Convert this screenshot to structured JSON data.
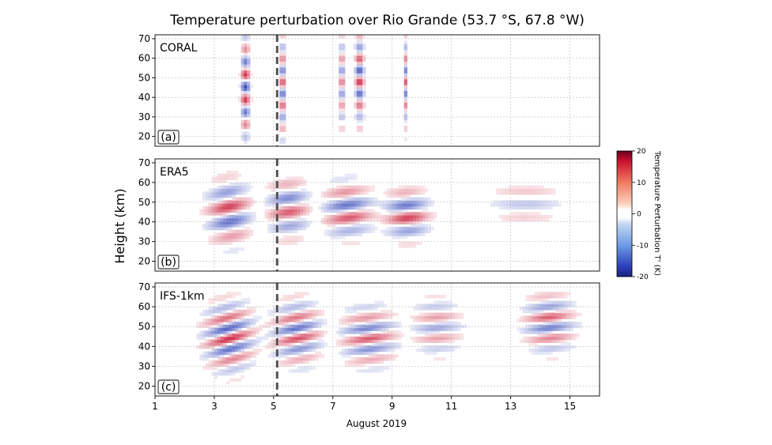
{
  "chart_data": {
    "type": "heatmap",
    "title": "Temperature perturbation over Rio Grande (53.7 °S, 67.8 °W)",
    "xlabel": "August 2019",
    "ylabel": "Height (km)",
    "xlim": [
      1,
      16
    ],
    "x_ticks": [
      1,
      3,
      5,
      7,
      9,
      11,
      13,
      15
    ],
    "ylim": [
      15,
      72
    ],
    "y_ticks": [
      20,
      30,
      40,
      50,
      60,
      70
    ],
    "grid": true,
    "event_marker_x": 5.12,
    "colorbar": {
      "label": "Temperature Perturbation T' (K)",
      "range": [
        -20,
        20
      ],
      "ticks": [
        20,
        10,
        0,
        -10,
        -20
      ],
      "colormap": "diverging blue-white-red",
      "colors": {
        "min": "#2c3fb8",
        "zero": "#ffffff",
        "max": "#c8102e"
      }
    },
    "panels": [
      {
        "id": "a",
        "name": "CORAL",
        "label": "(a)",
        "data_coverage": "sparse lidar measurement periods",
        "features": [
          {
            "x": 4.05,
            "y": 45,
            "amplitude": 16,
            "sx": 0.14,
            "sy": 25,
            "wavelength_km": 13,
            "tilt": 0
          },
          {
            "x": 5.3,
            "y": 45,
            "amplitude": 14,
            "sx": 0.1,
            "sy": 25,
            "wavelength_km": 12,
            "tilt": 0
          },
          {
            "x": 7.3,
            "y": 48,
            "amplitude": 14,
            "sx": 0.07,
            "sy": 24,
            "wavelength_km": 12,
            "tilt": 0
          },
          {
            "x": 7.9,
            "y": 50,
            "amplitude": 16,
            "sx": 0.14,
            "sy": 22,
            "wavelength_km": 12,
            "tilt": 0
          },
          {
            "x": 9.45,
            "y": 48,
            "amplitude": 12,
            "sx": 0.04,
            "sy": 22,
            "wavelength_km": 12,
            "tilt": 0
          }
        ]
      },
      {
        "id": "b",
        "name": "ERA5",
        "label": "(b)",
        "features": [
          {
            "x": 3.5,
            "y": 45,
            "amplitude": 14,
            "sx": 0.7,
            "sy": 15,
            "wavelength_km": 16,
            "tilt": 3.0
          },
          {
            "x": 5.5,
            "y": 47,
            "amplitude": 12,
            "sx": 0.7,
            "sy": 14,
            "wavelength_km": 15,
            "tilt": 2.0
          },
          {
            "x": 7.5,
            "y": 46,
            "amplitude": 13,
            "sx": 0.8,
            "sy": 13,
            "wavelength_km": 14,
            "tilt": 2.0
          },
          {
            "x": 9.5,
            "y": 44,
            "amplitude": 14,
            "sx": 0.7,
            "sy": 12,
            "wavelength_km": 14,
            "tilt": 1.5
          },
          {
            "x": 13.5,
            "y": 50,
            "amplitude": 5,
            "sx": 1.2,
            "sy": 12,
            "wavelength_km": 14,
            "tilt": 0
          }
        ]
      },
      {
        "id": "c",
        "name": "IFS-1km",
        "label": "(c)",
        "features": [
          {
            "x": 3.5,
            "y": 45,
            "amplitude": 15,
            "sx": 0.8,
            "sy": 16,
            "wavelength_km": 11,
            "tilt": 4.0
          },
          {
            "x": 5.8,
            "y": 47,
            "amplitude": 13,
            "sx": 0.8,
            "sy": 15,
            "wavelength_km": 11,
            "tilt": 3.0
          },
          {
            "x": 8.2,
            "y": 45,
            "amplitude": 12,
            "sx": 0.9,
            "sy": 14,
            "wavelength_km": 11,
            "tilt": 2.0
          },
          {
            "x": 10.5,
            "y": 50,
            "amplitude": 8,
            "sx": 0.8,
            "sy": 14,
            "wavelength_km": 11,
            "tilt": 1.0
          },
          {
            "x": 14.3,
            "y": 52,
            "amplitude": 12,
            "sx": 0.8,
            "sy": 14,
            "wavelength_km": 11,
            "tilt": 1.5
          }
        ]
      }
    ]
  }
}
